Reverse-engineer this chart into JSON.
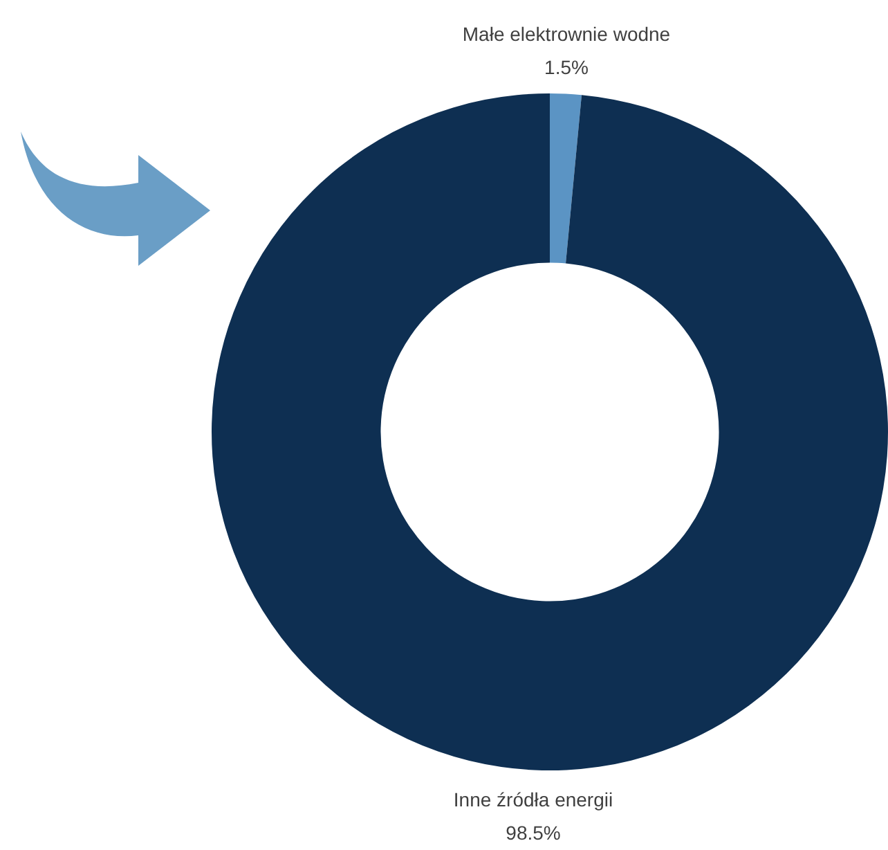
{
  "chart_data": {
    "type": "donut",
    "categories": [
      "Małe elektrownie wodne",
      "Inne źródła energii"
    ],
    "values": [
      1.5,
      98.5
    ],
    "colors": [
      "#5b94c4",
      "#0e2f52"
    ],
    "data_labels": true,
    "value_labels": [
      "1.5%",
      "98.5%"
    ],
    "legend": false
  }
}
